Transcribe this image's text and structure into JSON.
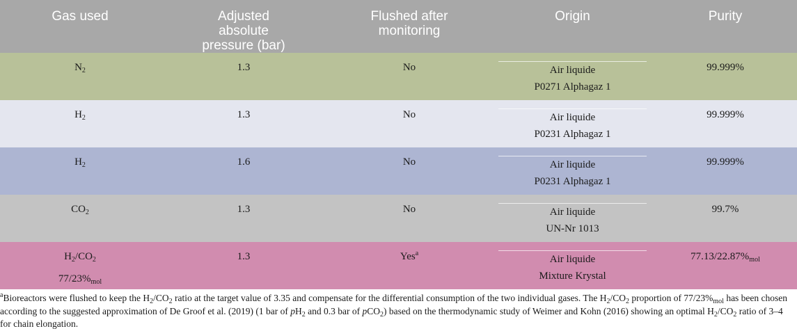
{
  "table": {
    "headers": {
      "gas": "Gas used",
      "pressure": "Adjusted absolute pressure (bar)",
      "flushed": "Flushed after monitoring",
      "origin": "Origin",
      "purity": "Purity"
    },
    "rows": [
      {
        "gas_main": "N",
        "gas_sub": "2",
        "pressure": "1.3",
        "flushed": "No",
        "origin_1": "Air liquide",
        "origin_2": "P0271 Alphagaz 1",
        "purity": "99.999%",
        "color": "#b8c199"
      },
      {
        "gas_main": "H",
        "gas_sub": "2",
        "pressure": "1.3",
        "flushed": "No",
        "origin_1": "Air liquide",
        "origin_2": "P0231 Alphagaz 1",
        "purity": "99.999%",
        "color": "#e4e6ef"
      },
      {
        "gas_main": "H",
        "gas_sub": "2",
        "pressure": "1.6",
        "flushed": "No",
        "origin_1": "Air liquide",
        "origin_2": "P0231 Alphagaz 1",
        "purity": "99.999%",
        "color": "#adb5d2"
      },
      {
        "gas_main": "CO",
        "gas_sub": "2",
        "pressure": "1.3",
        "flushed": "No",
        "origin_1": "Air liquide",
        "origin_2": "UN-Nr 1013",
        "purity": "99.7%",
        "color": "#c3c3c3"
      },
      {
        "gas_a": "H",
        "gas_a_sub": "2",
        "gas_b": "/CO",
        "gas_b_sub": "2",
        "gas_line2": "77/23%",
        "gas_line2_sub": "mol",
        "pressure": "1.3",
        "flushed": "Yes",
        "flushed_sup": "a",
        "origin_1": "Air liquide",
        "origin_2": "Mixture Krystal",
        "purity": "77.13/22.87%",
        "purity_sub": "mol",
        "color": "#d18caf"
      }
    ]
  },
  "footnote": {
    "mark": "a",
    "t1": "Bioreactors were flushed to keep the H",
    "s1": "2",
    "t2": "/CO",
    "s2": "2",
    "t3": " ratio at the target value of 3.35 and compensate for the differential consumption of the two individual gases. The H",
    "s3": "2",
    "t4": "/CO",
    "s4": "2",
    "t5": " proportion of 77/23%",
    "s5": "mol",
    "t6": " has been chosen according to the suggested approximation of De Groof et al. (2019) (1 bar of ",
    "i1": "p",
    "t7": "H",
    "s6": "2",
    "t8": " and 0.3 bar of ",
    "i2": "p",
    "t9": "CO",
    "s7": "2",
    "t10": ") based on the thermodynamic study of Weimer and Kohn (2016) showing an optimal H",
    "s8": "2",
    "t11": "/CO",
    "s9": "2",
    "t12": " ratio of 3–4 for chain elongation."
  }
}
